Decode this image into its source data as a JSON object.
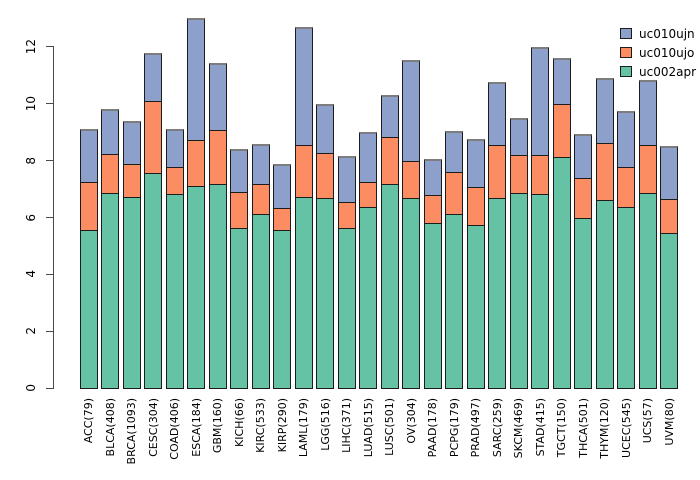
{
  "chart_data": {
    "type": "bar",
    "stacked": true,
    "title": "",
    "xlabel": "",
    "ylabel": "",
    "categories": [
      "ACC(79)",
      "BLCA(408)",
      "BRCA(1093)",
      "CESC(304)",
      "COAD(406)",
      "ESCA(184)",
      "GBM(160)",
      "KICH(66)",
      "KIRC(533)",
      "KIRP(290)",
      "LAML(179)",
      "LGG(516)",
      "LIHC(371)",
      "LUAD(515)",
      "LUSC(501)",
      "OV(304)",
      "PAAD(178)",
      "PCPG(179)",
      "PRAD(497)",
      "SARC(259)",
      "SKCM(469)",
      "STAD(415)",
      "TGCT(150)",
      "THCA(501)",
      "THYM(120)",
      "UCEC(545)",
      "UCS(57)",
      "UVM(80)"
    ],
    "series": [
      {
        "name": "uc010ujn",
        "color": "#8da0cb",
        "values": [
          1.9,
          1.6,
          1.55,
          1.75,
          1.35,
          4.3,
          2.4,
          1.55,
          1.45,
          1.6,
          4.2,
          1.75,
          1.65,
          1.8,
          1.5,
          3.6,
          1.3,
          1.5,
          1.7,
          2.25,
          1.35,
          3.85,
          1.65,
          1.6,
          2.3,
          2.0,
          2.35,
          1.9
        ]
      },
      {
        "name": "uc010ujo",
        "color": "#fc8d62",
        "values": [
          1.7,
          1.4,
          1.2,
          2.55,
          1.0,
          1.65,
          1.95,
          1.3,
          1.1,
          0.8,
          1.85,
          1.65,
          0.95,
          0.9,
          1.7,
          1.35,
          1.0,
          1.5,
          1.4,
          1.9,
          1.35,
          1.4,
          1.9,
          1.45,
          2.05,
          1.45,
          1.7,
          1.2
        ]
      },
      {
        "name": "uc002apr",
        "color": "#66c2a5",
        "values": [
          5.6,
          6.9,
          6.75,
          7.6,
          6.85,
          7.15,
          7.2,
          5.65,
          6.15,
          5.6,
          6.75,
          6.7,
          5.65,
          6.4,
          7.2,
          6.7,
          5.85,
          6.15,
          5.75,
          6.7,
          6.9,
          6.85,
          8.15,
          6.0,
          6.65,
          6.4,
          6.9,
          5.5
        ]
      }
    ],
    "totals": [
      9.2,
      9.9,
      9.5,
      11.9,
      9.2,
      13.1,
      11.55,
      8.5,
      8.7,
      8.0,
      12.8,
      10.1,
      8.25,
      9.1,
      10.4,
      11.65,
      8.15,
      9.15,
      8.85,
      10.85,
      9.6,
      12.1,
      11.7,
      9.05,
      11.0,
      9.85,
      10.95,
      8.6
    ],
    "stack_order_bottom_to_top": [
      "uc002apr",
      "uc010ujo",
      "uc010ujn"
    ],
    "ylim": [
      0,
      13.2
    ],
    "yticks": [
      0,
      2,
      4,
      6,
      8,
      10,
      12
    ],
    "ytick_labels": [
      "0",
      "2",
      "4",
      "6",
      "8",
      "10",
      "12"
    ],
    "grid": false,
    "legend": {
      "position": "top-right",
      "entries": [
        "uc010ujn",
        "uc010ujo",
        "uc002apr"
      ]
    },
    "colors": {
      "background": "#ffffff",
      "bar_border": "#1c1c1c",
      "bar_top_cap": "#7d7d7d",
      "axis": "#4a4a4a",
      "text": "#000000"
    }
  }
}
